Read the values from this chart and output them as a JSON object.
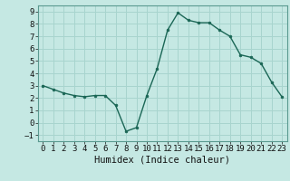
{
  "xlabel": "Humidex (Indice chaleur)",
  "ylabel": "",
  "bg_color": "#c5e8e3",
  "grid_color": "#a8d4ce",
  "line_color": "#1a6655",
  "marker_color": "#1a6655",
  "x": [
    0,
    1,
    2,
    3,
    4,
    5,
    6,
    7,
    8,
    9,
    10,
    11,
    12,
    13,
    14,
    15,
    16,
    17,
    18,
    19,
    20,
    21,
    22,
    23
  ],
  "y": [
    3.0,
    2.7,
    2.4,
    2.2,
    2.1,
    2.2,
    2.2,
    1.4,
    -0.7,
    -0.4,
    2.2,
    4.4,
    7.5,
    8.9,
    8.3,
    8.1,
    8.1,
    7.5,
    7.0,
    5.5,
    5.3,
    4.8,
    3.3,
    2.1
  ],
  "xlim": [
    -0.5,
    23.5
  ],
  "ylim": [
    -1.5,
    9.5
  ],
  "yticks": [
    -1,
    0,
    1,
    2,
    3,
    4,
    5,
    6,
    7,
    8,
    9
  ],
  "xticks": [
    0,
    1,
    2,
    3,
    4,
    5,
    6,
    7,
    8,
    9,
    10,
    11,
    12,
    13,
    14,
    15,
    16,
    17,
    18,
    19,
    20,
    21,
    22,
    23
  ],
  "tick_fontsize": 6.5,
  "xlabel_fontsize": 7.5
}
